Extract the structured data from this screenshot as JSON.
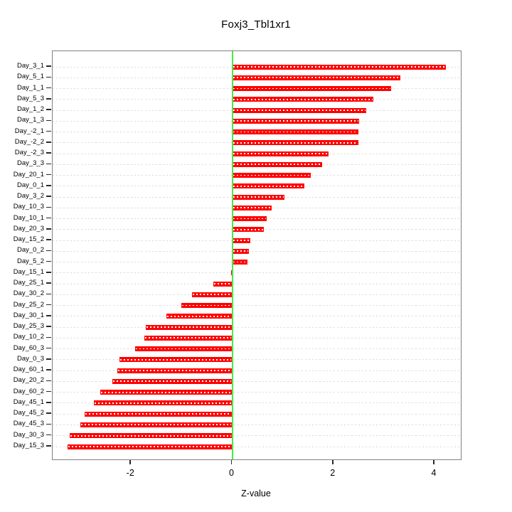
{
  "chart_data": {
    "type": "bar",
    "orientation": "horizontal",
    "title": "Foxj3_Tbl1xr1",
    "xlabel": "Z-value",
    "categories": [
      "Day_3_1",
      "Day_5_1",
      "Day_1_1",
      "Day_5_3",
      "Day_1_2",
      "Day_1_3",
      "Day_-2_1",
      "Day_-2_2",
      "Day_-2_3",
      "Day_3_3",
      "Day_20_1",
      "Day_0_1",
      "Day_3_2",
      "Day_10_3",
      "Day_10_1",
      "Day_20_3",
      "Day_15_2",
      "Day_0_2",
      "Day_5_2",
      "Day_15_1",
      "Day_25_1",
      "Day_30_2",
      "Day_25_2",
      "Day_30_1",
      "Day_25_3",
      "Day_10_2",
      "Day_60_3",
      "Day_0_3",
      "Day_60_1",
      "Day_20_2",
      "Day_60_2",
      "Day_45_1",
      "Day_45_2",
      "Day_45_3",
      "Day_30_3",
      "Day_15_3"
    ],
    "values": [
      4.23,
      3.33,
      3.14,
      2.79,
      2.65,
      2.51,
      2.5,
      2.49,
      1.91,
      1.78,
      1.56,
      1.43,
      1.04,
      0.78,
      0.68,
      0.63,
      0.36,
      0.33,
      0.3,
      -0.02,
      -0.37,
      -0.79,
      -1.0,
      -1.3,
      -1.71,
      -1.73,
      -1.92,
      -2.23,
      -2.27,
      -2.37,
      -2.61,
      -2.74,
      -2.92,
      -3.0,
      -3.21,
      -3.25
    ],
    "xticks": [
      -2,
      0,
      2,
      4
    ],
    "xtick_labels": [
      "-2",
      "0",
      "2",
      "4"
    ],
    "xlim": [
      -3.55,
      4.52
    ],
    "grid": true,
    "legend": null,
    "bar_color": "#FF0000",
    "zero_line_color": "#47E947",
    "grid_color": "#DADADA",
    "box_color": "#818181"
  }
}
